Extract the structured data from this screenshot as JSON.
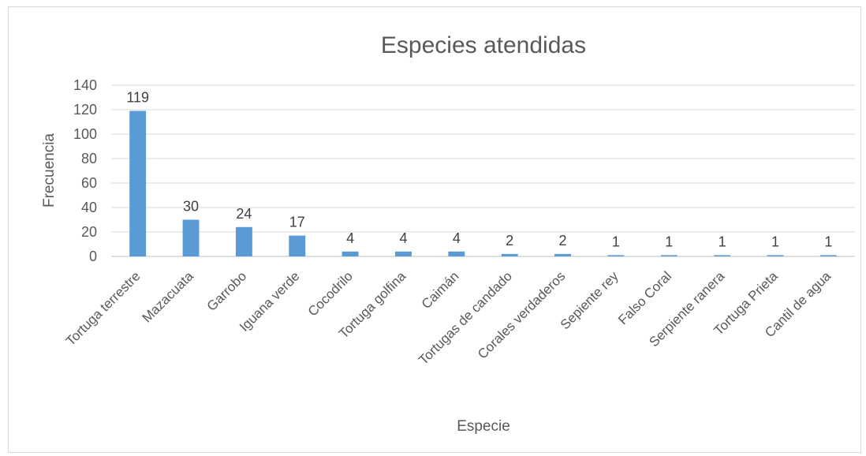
{
  "chart_data": {
    "type": "bar",
    "title": "Especies atendidas",
    "xlabel": "Especie",
    "ylabel": "Frecuencia",
    "ylim": [
      0,
      140
    ],
    "ytick_step": 20,
    "yticks": [
      "0",
      "20",
      "40",
      "60",
      "80",
      "100",
      "120",
      "140"
    ],
    "grid": true,
    "legend": "none",
    "bar_color": "#5b9bd5",
    "categories": [
      "Tortuga terrestre",
      "Mazacuata",
      "Garrobo",
      "Iguana verde",
      "Cocodrilo",
      "Tortuga golfina",
      "Caimán",
      "Tortugas de candado",
      "Corales verdaderos",
      "Sepiente rey",
      "Falso Coral",
      "Serpiente ranera",
      "Tortuga Prieta",
      "Cantil de agua"
    ],
    "values": [
      119,
      30,
      24,
      17,
      4,
      4,
      4,
      2,
      2,
      1,
      1,
      1,
      1,
      1
    ],
    "data_labels": [
      "119",
      "30",
      "24",
      "17",
      "4",
      "4",
      "4",
      "2",
      "2",
      "1",
      "1",
      "1",
      "1",
      "1"
    ]
  }
}
